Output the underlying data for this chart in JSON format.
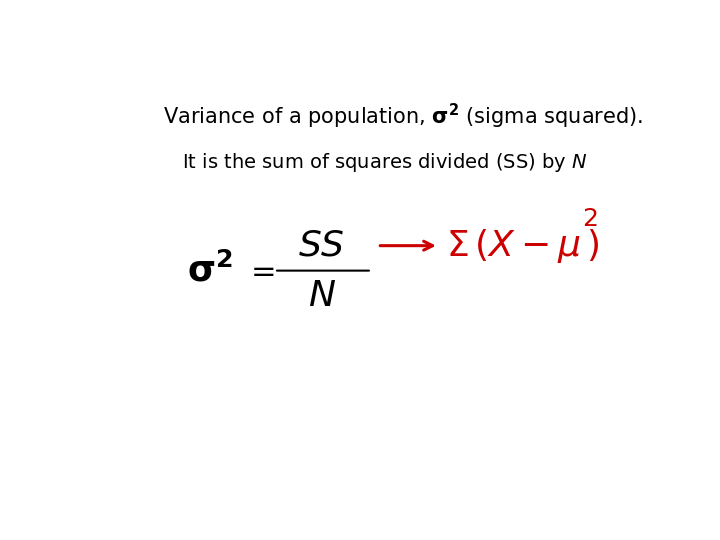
{
  "bg_color": "#ffffff",
  "text_color": "#000000",
  "red_color": "#cc0000",
  "title_fontsize": 15,
  "subtitle_fontsize": 14,
  "formula_fontsize": 22,
  "red_fontsize": 22
}
